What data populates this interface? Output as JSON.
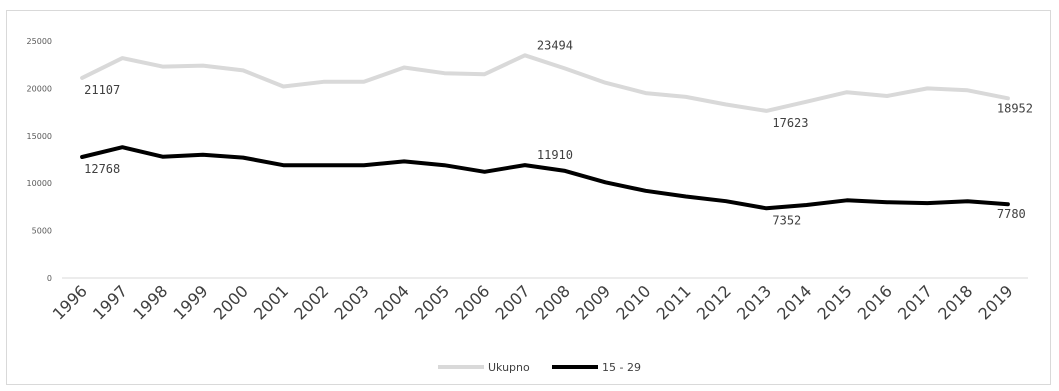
{
  "chart_data": {
    "type": "line",
    "x": [
      "1996",
      "1997",
      "1998",
      "1999",
      "2000",
      "2001",
      "2002",
      "2003",
      "2004",
      "2005",
      "2006",
      "2007",
      "2008",
      "2009",
      "2010",
      "2011",
      "2012",
      "2013",
      "2014",
      "2015",
      "2016",
      "2017",
      "2018",
      "2019"
    ],
    "series": [
      {
        "name": "Ukupno",
        "color": "#d9d9d9",
        "values": [
          21107,
          23200,
          22300,
          22400,
          21900,
          20200,
          20700,
          20700,
          22200,
          21600,
          21500,
          23494,
          22100,
          20600,
          19500,
          19100,
          18300,
          17623,
          18600,
          19600,
          19200,
          20000,
          19800,
          18952
        ]
      },
      {
        "name": "15 - 29",
        "color": "#000000",
        "values": [
          12768,
          13800,
          12800,
          13000,
          12700,
          11900,
          11900,
          11900,
          12300,
          11900,
          11200,
          11910,
          11300,
          10100,
          9200,
          8600,
          8100,
          7352,
          7700,
          8200,
          8000,
          7900,
          8100,
          7780
        ]
      }
    ],
    "data_labels": [
      {
        "series": 0,
        "x": "1996",
        "text": "21107"
      },
      {
        "series": 0,
        "x": "2007",
        "text": "23494"
      },
      {
        "series": 0,
        "x": "2013",
        "text": "17623"
      },
      {
        "series": 0,
        "x": "2019",
        "text": "18952"
      },
      {
        "series": 1,
        "x": "1996",
        "text": "12768"
      },
      {
        "series": 1,
        "x": "2007",
        "text": "11910"
      },
      {
        "series": 1,
        "x": "2013",
        "text": "7352"
      },
      {
        "series": 1,
        "x": "2019",
        "text": "7780"
      }
    ],
    "yticks": [
      "0",
      "5000",
      "10000",
      "15000",
      "20000",
      "25000"
    ],
    "ylim": [
      0,
      25000
    ],
    "grid": false,
    "legend_position": "bottom"
  }
}
